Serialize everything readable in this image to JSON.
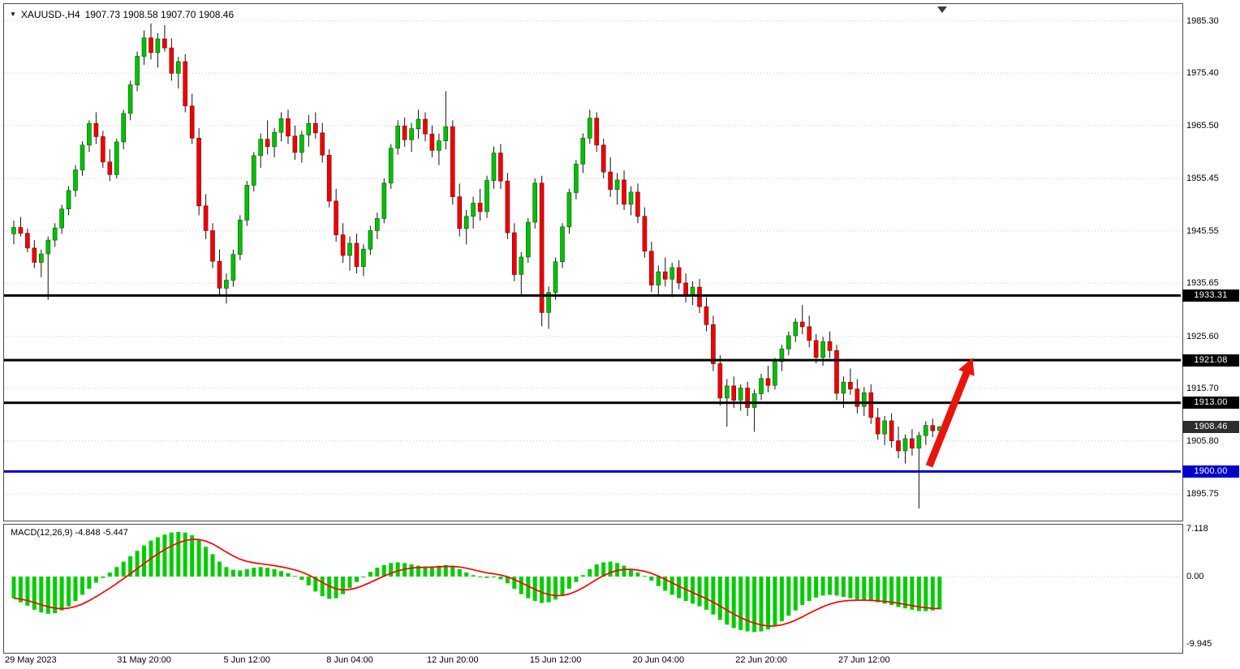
{
  "title_bar": {
    "dropdown_icon": "▼",
    "symbol_period": "XAUUSD-,H4",
    "ohlc_text": "1907.73 1908.58 1907.70 1908.46"
  },
  "chart_data": {
    "type": "candlestick",
    "symbol": "XAUUSD-",
    "timeframe": "H4",
    "title": "XAUUSD-,H4 1907.73 1908.58 1907.70 1908.46",
    "current": {
      "open": 1907.73,
      "high": 1908.58,
      "low": 1907.7,
      "close": 1908.46
    },
    "price_range": {
      "min": 1891.0,
      "max": 1988.5
    },
    "price_axis_ticks": [
      "1985.30",
      "1975.40",
      "1965.50",
      "1955.45",
      "1945.55",
      "1935.65",
      "1925.60",
      "1915.70",
      "1905.80",
      "1895.75"
    ],
    "x_axis_labels": [
      {
        "i": 0,
        "label": "29 May 2023"
      },
      {
        "i": 19,
        "label": "31 May 20:00"
      },
      {
        "i": 34,
        "label": "5 Jun 12:00"
      },
      {
        "i": 49,
        "label": "8 Jun 04:00"
      },
      {
        "i": 64,
        "label": "12 Jun 20:00"
      },
      {
        "i": 79,
        "label": "15 Jun 12:00"
      },
      {
        "i": 94,
        "label": "20 Jun 04:00"
      },
      {
        "i": 109,
        "label": "22 Jun 20:00"
      },
      {
        "i": 124,
        "label": "27 Jun 12:00"
      }
    ],
    "hlines": [
      {
        "price": 1933.31,
        "label": "1933.31",
        "color": "#000000",
        "tag_bg": "#000000"
      },
      {
        "price": 1921.08,
        "label": "1921.08",
        "color": "#000000",
        "tag_bg": "#000000"
      },
      {
        "price": 1913.0,
        "label": "1913.00",
        "color": "#000000",
        "tag_bg": "#000000"
      },
      {
        "price": 1900.0,
        "label": "1900.00",
        "color": "#0000CC",
        "tag_bg": "#0000CC"
      }
    ],
    "current_price_tag": {
      "price": 1908.46,
      "label": "1908.46",
      "tag_bg": "#2e2e2e"
    },
    "arrow_annotation": {
      "from": {
        "i": 133.5,
        "price": 1901.0
      },
      "to": {
        "i": 139.8,
        "price": 1921.5
      },
      "color": "#E8150D"
    },
    "colors": {
      "up": "#00C000",
      "up_stroke": "#005a00",
      "down": "#F00000",
      "down_stroke": "#7a0000",
      "wick": "#111111",
      "grid": "#c9c9c9",
      "histogram": "#00CC00",
      "signal": "#FF0000",
      "tag_fg": "#FFFFFF"
    },
    "candles": [
      [
        1945.0,
        1947.5,
        1943.0,
        1946.2
      ],
      [
        1946.2,
        1948.2,
        1944.5,
        1945.1
      ],
      [
        1945.1,
        1946.0,
        1941.5,
        1942.3
      ],
      [
        1942.3,
        1943.8,
        1938.5,
        1939.6
      ],
      [
        1939.6,
        1942.0,
        1936.8,
        1941.2
      ],
      [
        1941.2,
        1944.5,
        1932.5,
        1943.8
      ],
      [
        1943.8,
        1947.0,
        1942.5,
        1946.1
      ],
      [
        1946.1,
        1950.5,
        1945.0,
        1949.7
      ],
      [
        1949.7,
        1954.0,
        1948.5,
        1953.2
      ],
      [
        1953.2,
        1958.0,
        1952.0,
        1957.1
      ],
      [
        1957.1,
        1962.5,
        1956.0,
        1961.8
      ],
      [
        1961.8,
        1966.5,
        1960.5,
        1965.9
      ],
      [
        1965.9,
        1968.0,
        1962.0,
        1963.4
      ],
      [
        1963.4,
        1964.5,
        1957.5,
        1958.6
      ],
      [
        1958.6,
        1961.0,
        1955.0,
        1956.2
      ],
      [
        1956.2,
        1963.0,
        1955.5,
        1962.4
      ],
      [
        1962.4,
        1968.5,
        1961.0,
        1967.8
      ],
      [
        1967.8,
        1974.0,
        1966.5,
        1973.2
      ],
      [
        1973.2,
        1979.5,
        1972.0,
        1978.6
      ],
      [
        1978.6,
        1983.5,
        1977.0,
        1982.1
      ],
      [
        1982.1,
        1984.8,
        1978.0,
        1979.3
      ],
      [
        1979.3,
        1983.0,
        1976.5,
        1981.9
      ],
      [
        1981.9,
        1984.5,
        1979.5,
        1980.2
      ],
      [
        1980.2,
        1982.0,
        1974.0,
        1975.4
      ],
      [
        1975.4,
        1978.5,
        1972.5,
        1977.6
      ],
      [
        1977.6,
        1979.0,
        1968.0,
        1969.2
      ],
      [
        1969.2,
        1971.5,
        1962.0,
        1963.1
      ],
      [
        1963.1,
        1965.0,
        1948.5,
        1950.3
      ],
      [
        1950.3,
        1952.5,
        1944.0,
        1945.6
      ],
      [
        1945.6,
        1947.0,
        1938.5,
        1939.8
      ],
      [
        1939.8,
        1942.0,
        1933.5,
        1934.7
      ],
      [
        1934.7,
        1937.5,
        1931.8,
        1936.2
      ],
      [
        1936.2,
        1942.0,
        1935.0,
        1941.1
      ],
      [
        1941.1,
        1948.5,
        1940.0,
        1947.6
      ],
      [
        1947.6,
        1955.0,
        1946.5,
        1954.2
      ],
      [
        1954.2,
        1960.5,
        1953.0,
        1959.8
      ],
      [
        1959.8,
        1964.0,
        1957.5,
        1962.9
      ],
      [
        1962.9,
        1966.5,
        1960.0,
        1961.5
      ],
      [
        1961.5,
        1965.0,
        1959.5,
        1964.2
      ],
      [
        1964.2,
        1968.0,
        1962.5,
        1966.8
      ],
      [
        1966.8,
        1968.5,
        1962.0,
        1963.5
      ],
      [
        1963.5,
        1965.5,
        1959.0,
        1960.4
      ],
      [
        1960.4,
        1964.5,
        1958.5,
        1963.7
      ],
      [
        1963.7,
        1967.5,
        1961.5,
        1965.9
      ],
      [
        1965.9,
        1968.0,
        1963.0,
        1964.1
      ],
      [
        1964.1,
        1966.0,
        1958.5,
        1959.9
      ],
      [
        1959.9,
        1961.0,
        1950.0,
        1951.2
      ],
      [
        1951.2,
        1953.5,
        1943.5,
        1944.8
      ],
      [
        1944.8,
        1947.0,
        1939.5,
        1940.9
      ],
      [
        1940.9,
        1944.5,
        1938.0,
        1943.2
      ],
      [
        1943.2,
        1945.0,
        1937.5,
        1938.8
      ],
      [
        1938.8,
        1943.0,
        1937.0,
        1942.1
      ],
      [
        1942.1,
        1946.5,
        1941.0,
        1945.6
      ],
      [
        1945.6,
        1949.0,
        1944.0,
        1947.9
      ],
      [
        1947.9,
        1955.5,
        1947.0,
        1954.6
      ],
      [
        1954.6,
        1962.0,
        1953.5,
        1961.2
      ],
      [
        1961.2,
        1966.5,
        1960.0,
        1965.4
      ],
      [
        1965.4,
        1967.0,
        1961.5,
        1962.8
      ],
      [
        1962.8,
        1966.0,
        1960.5,
        1964.9
      ],
      [
        1964.9,
        1968.5,
        1963.0,
        1966.7
      ],
      [
        1966.7,
        1968.0,
        1962.5,
        1963.9
      ],
      [
        1963.9,
        1965.5,
        1959.5,
        1960.8
      ],
      [
        1960.8,
        1964.0,
        1958.0,
        1962.6
      ],
      [
        1962.6,
        1972.0,
        1961.0,
        1965.3
      ],
      [
        1965.3,
        1966.5,
        1950.5,
        1952.0
      ],
      [
        1952.0,
        1954.5,
        1944.5,
        1946.0
      ],
      [
        1946.0,
        1949.5,
        1943.0,
        1948.3
      ],
      [
        1948.3,
        1952.0,
        1946.0,
        1950.8
      ],
      [
        1950.8,
        1953.5,
        1947.5,
        1949.2
      ],
      [
        1949.2,
        1956.0,
        1948.0,
        1955.1
      ],
      [
        1955.1,
        1961.5,
        1953.5,
        1960.3
      ],
      [
        1960.3,
        1962.0,
        1953.5,
        1955.0
      ],
      [
        1955.0,
        1956.5,
        1944.0,
        1945.2
      ],
      [
        1945.2,
        1947.0,
        1936.0,
        1937.3
      ],
      [
        1937.3,
        1941.5,
        1933.5,
        1940.6
      ],
      [
        1940.6,
        1948.0,
        1939.5,
        1947.2
      ],
      [
        1947.2,
        1955.5,
        1946.0,
        1954.6
      ],
      [
        1954.6,
        1956.0,
        1927.5,
        1930.1
      ],
      [
        1930.1,
        1935.0,
        1927.0,
        1933.9
      ],
      [
        1933.9,
        1940.5,
        1932.5,
        1939.7
      ],
      [
        1939.7,
        1947.0,
        1938.5,
        1946.3
      ],
      [
        1946.3,
        1953.5,
        1945.0,
        1952.8
      ],
      [
        1952.8,
        1959.0,
        1951.5,
        1958.2
      ],
      [
        1958.2,
        1964.0,
        1956.5,
        1963.1
      ],
      [
        1963.1,
        1968.5,
        1962.0,
        1966.9
      ],
      [
        1966.9,
        1968.0,
        1960.5,
        1961.8
      ],
      [
        1961.8,
        1963.0,
        1955.5,
        1956.7
      ],
      [
        1956.7,
        1959.5,
        1952.0,
        1953.4
      ],
      [
        1953.4,
        1956.5,
        1950.5,
        1955.2
      ],
      [
        1955.2,
        1957.0,
        1949.5,
        1950.6
      ],
      [
        1950.6,
        1954.0,
        1948.5,
        1952.9
      ],
      [
        1952.9,
        1954.5,
        1947.0,
        1948.3
      ],
      [
        1948.3,
        1950.0,
        1940.5,
        1941.7
      ],
      [
        1941.7,
        1943.5,
        1934.0,
        1935.3
      ],
      [
        1935.3,
        1939.0,
        1933.5,
        1937.8
      ],
      [
        1937.8,
        1940.5,
        1935.0,
        1936.4
      ],
      [
        1936.4,
        1939.5,
        1933.0,
        1938.6
      ],
      [
        1938.6,
        1940.0,
        1934.5,
        1935.7
      ],
      [
        1935.7,
        1937.5,
        1932.0,
        1933.4
      ],
      [
        1933.4,
        1936.0,
        1931.5,
        1934.9
      ],
      [
        1934.9,
        1936.5,
        1930.0,
        1931.2
      ],
      [
        1931.2,
        1933.0,
        1926.5,
        1927.8
      ],
      [
        1927.8,
        1929.5,
        1919.0,
        1920.4
      ],
      [
        1920.4,
        1922.0,
        1912.5,
        1913.9
      ],
      [
        1913.9,
        1917.5,
        1908.5,
        1916.2
      ],
      [
        1916.2,
        1918.0,
        1912.0,
        1913.5
      ],
      [
        1913.5,
        1916.5,
        1911.5,
        1915.8
      ],
      [
        1915.8,
        1917.0,
        1910.5,
        1912.1
      ],
      [
        1912.1,
        1915.5,
        1907.5,
        1914.7
      ],
      [
        1914.7,
        1918.5,
        1913.5,
        1917.6
      ],
      [
        1917.6,
        1920.0,
        1915.0,
        1916.3
      ],
      [
        1916.3,
        1921.5,
        1915.5,
        1920.8
      ],
      [
        1920.8,
        1924.0,
        1919.0,
        1923.2
      ],
      [
        1923.2,
        1926.5,
        1922.0,
        1925.7
      ],
      [
        1925.7,
        1929.0,
        1924.5,
        1928.3
      ],
      [
        1928.3,
        1931.5,
        1926.0,
        1927.4
      ],
      [
        1927.4,
        1929.5,
        1923.5,
        1924.8
      ],
      [
        1924.8,
        1926.0,
        1920.5,
        1921.6
      ],
      [
        1921.6,
        1925.5,
        1920.0,
        1924.6
      ],
      [
        1924.6,
        1926.5,
        1921.5,
        1922.9
      ],
      [
        1922.9,
        1924.0,
        1913.5,
        1914.8
      ],
      [
        1914.8,
        1918.0,
        1912.0,
        1916.9
      ],
      [
        1916.9,
        1919.5,
        1914.5,
        1915.6
      ],
      [
        1915.6,
        1917.5,
        1911.0,
        1912.3
      ],
      [
        1912.3,
        1916.0,
        1910.5,
        1914.9
      ],
      [
        1914.9,
        1916.5,
        1909.0,
        1910.2
      ],
      [
        1910.2,
        1912.0,
        1906.0,
        1907.1
      ],
      [
        1907.1,
        1910.5,
        1905.0,
        1909.6
      ],
      [
        1909.6,
        1911.0,
        1904.5,
        1905.8
      ],
      [
        1905.8,
        1908.5,
        1902.5,
        1903.9
      ],
      [
        1903.9,
        1907.0,
        1901.5,
        1906.2
      ],
      [
        1906.2,
        1908.0,
        1903.0,
        1904.4
      ],
      [
        1904.4,
        1907.5,
        1893.0,
        1906.8
      ],
      [
        1906.8,
        1909.5,
        1905.0,
        1908.7
      ],
      [
        1908.7,
        1910.0,
        1906.5,
        1907.7
      ],
      [
        1907.73,
        1908.58,
        1907.7,
        1908.46
      ]
    ],
    "macd": {
      "label": "MACD(12,26,9) -4.848 -5.447",
      "params": "12,26,9",
      "macd_value": -4.848,
      "signal_value": -5.447,
      "axis_ticks": [
        "7.118",
        "0.00",
        "-9.945"
      ],
      "axis_values": [
        7.118,
        0.0,
        -9.945
      ],
      "histogram": [
        -3.2,
        -3.8,
        -4.3,
        -4.9,
        -5.3,
        -5.5,
        -5.4,
        -5.0,
        -4.4,
        -3.6,
        -2.7,
        -1.8,
        -0.9,
        -0.2,
        0.6,
        1.4,
        2.2,
        3.0,
        3.8,
        4.6,
        5.3,
        5.8,
        6.2,
        6.5,
        6.6,
        6.5,
        6.1,
        5.4,
        4.4,
        3.3,
        2.2,
        1.4,
        1.0,
        0.9,
        1.1,
        1.3,
        1.4,
        1.3,
        1.1,
        0.8,
        0.5,
        0.1,
        -0.5,
        -1.3,
        -2.2,
        -2.9,
        -3.3,
        -3.2,
        -2.6,
        -1.7,
        -0.8,
        0.0,
        0.7,
        1.3,
        1.7,
        2.0,
        2.1,
        2.0,
        1.8,
        1.6,
        1.5,
        1.5,
        1.6,
        1.7,
        1.5,
        1.1,
        0.6,
        0.2,
        -0.1,
        -0.2,
        -0.1,
        -0.4,
        -1.0,
        -1.8,
        -2.6,
        -3.2,
        -3.6,
        -3.9,
        -3.8,
        -3.4,
        -2.7,
        -1.8,
        -0.8,
        0.2,
        1.1,
        1.8,
        2.1,
        2.2,
        2.0,
        1.6,
        1.1,
        0.6,
        0.1,
        -0.6,
        -1.4,
        -2.1,
        -2.7,
        -3.2,
        -3.6,
        -4.0,
        -4.4,
        -4.9,
        -5.6,
        -6.4,
        -7.1,
        -7.6,
        -7.9,
        -8.1,
        -8.2,
        -8.1,
        -7.8,
        -7.3,
        -6.6,
        -5.8,
        -5.0,
        -4.2,
        -3.6,
        -3.1,
        -2.8,
        -2.7,
        -2.8,
        -3.0,
        -3.2,
        -3.4,
        -3.5,
        -3.6,
        -3.8,
        -4.0,
        -4.2,
        -4.5,
        -4.7,
        -4.9,
        -5.1,
        -5.1,
        -5.0,
        -4.848
      ]
    }
  }
}
